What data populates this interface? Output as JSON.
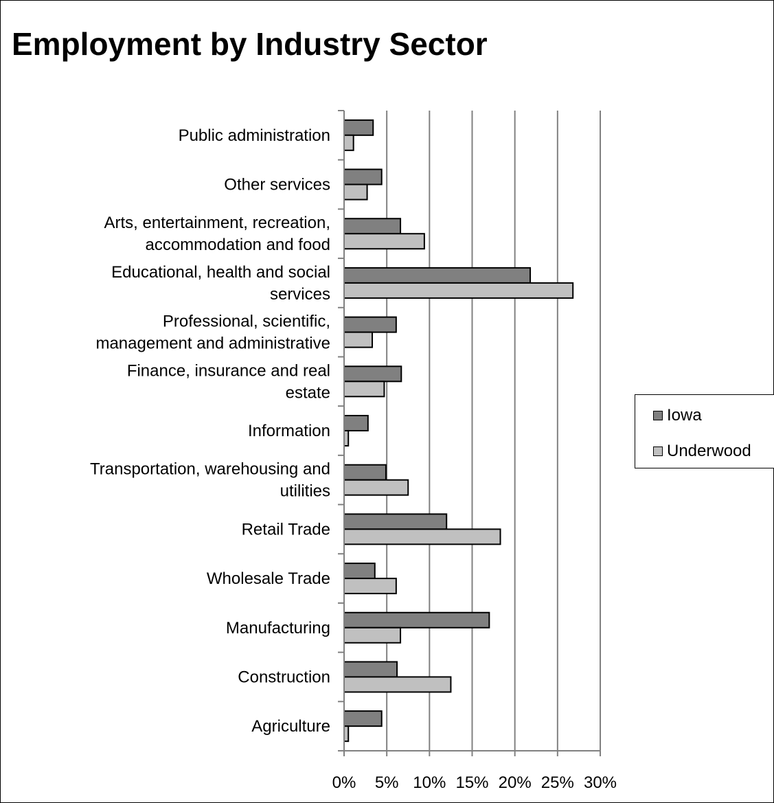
{
  "colors": {
    "Iowa": "#808080",
    "Underwood": "#c0c0c0",
    "grid": "#808080",
    "bar_outline": "#000000"
  },
  "chart_data": {
    "type": "bar",
    "orientation": "horizontal",
    "title": "Employment by Industry Sector",
    "xlabel": "",
    "ylabel": "",
    "xlim": [
      0,
      30
    ],
    "x_ticks": [
      "0%",
      "5%",
      "10%",
      "15%",
      "20%",
      "25%",
      "30%"
    ],
    "grid": "vertical",
    "legend_position": "right",
    "categories": [
      [
        "Public administration"
      ],
      [
        "Other services"
      ],
      [
        "Arts, entertainment, recreation,",
        "accommodation and food"
      ],
      [
        "Educational, health and social",
        "services"
      ],
      [
        "Professional, scientific,",
        "management and administrative"
      ],
      [
        "Finance, insurance and real",
        "estate"
      ],
      [
        "Information"
      ],
      [
        "Transportation, warehousing and",
        "utilities"
      ],
      [
        "Retail Trade"
      ],
      [
        "Wholesale Trade"
      ],
      [
        "Manufacturing"
      ],
      [
        "Construction"
      ],
      [
        "Agriculture"
      ]
    ],
    "series": [
      {
        "name": "Iowa",
        "values": [
          3.4,
          4.4,
          6.6,
          21.8,
          6.1,
          6.7,
          2.8,
          4.9,
          12.0,
          3.6,
          17.0,
          6.2,
          4.4
        ]
      },
      {
        "name": "Underwood",
        "values": [
          1.1,
          2.7,
          9.4,
          26.8,
          3.3,
          4.7,
          0.5,
          7.5,
          18.3,
          6.1,
          6.6,
          12.5,
          0.5
        ]
      }
    ]
  }
}
